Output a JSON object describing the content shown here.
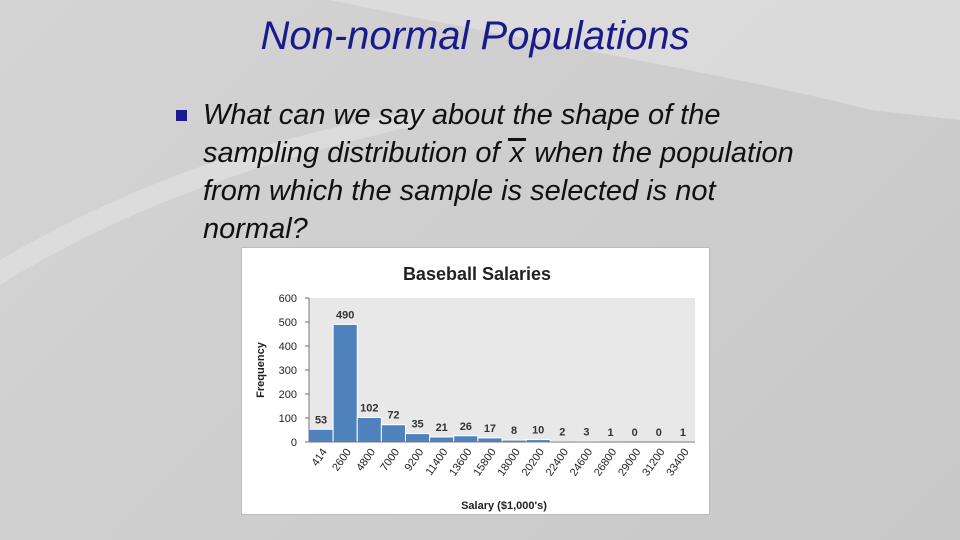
{
  "slide": {
    "title": "Non-normal Populations",
    "bullet": {
      "before_var": "What can we say about the shape of the sampling distribution of ",
      "var": "x",
      "after_var": " when the population from which the sample is selected is not normal?"
    }
  },
  "chart_data": {
    "type": "bar",
    "title": "Baseball Salaries",
    "xlabel": "Salary ($1,000's)",
    "ylabel": "Frequency",
    "ylim": [
      0,
      600
    ],
    "yticks": [
      0,
      100,
      200,
      300,
      400,
      500,
      600
    ],
    "categories": [
      "414",
      "2600",
      "4800",
      "7000",
      "9200",
      "11400",
      "13600",
      "15800",
      "18000",
      "20200",
      "22400",
      "24600",
      "26800",
      "29000",
      "31200",
      "33400"
    ],
    "values": [
      53,
      490,
      102,
      72,
      35,
      21,
      26,
      17,
      8,
      10,
      2,
      3,
      1,
      0,
      0,
      1
    ],
    "bar_color": "#4f81bd",
    "plot_bg": "#e8e8e8",
    "grid": false,
    "legend": "none"
  }
}
